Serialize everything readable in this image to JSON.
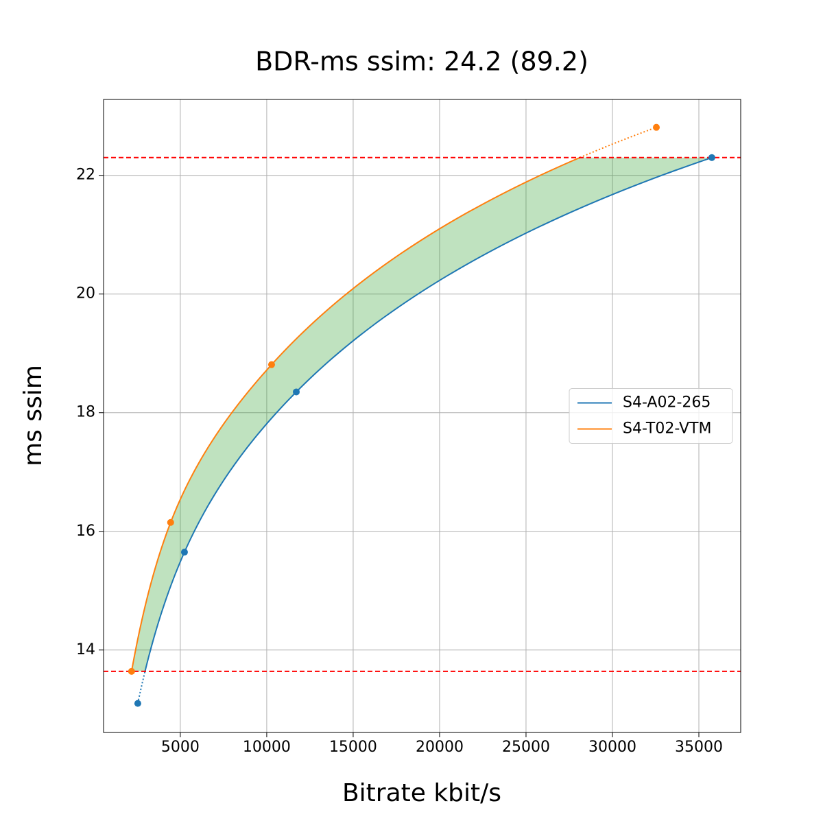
{
  "chart_data": {
    "type": "line",
    "title": "BDR-ms ssim: 24.2 (89.2)",
    "x_label": "Bitrate kbit/s",
    "y_label": "ms ssim",
    "series": [
      {
        "name": "S4-A02-265",
        "color": "#1f77b4",
        "x": [
          2540,
          5240,
          11710,
          35750
        ],
        "values": [
          13.1,
          15.65,
          18.35,
          22.3
        ]
      },
      {
        "name": "S4-T02-VTM",
        "color": "#ff7f0e",
        "x": [
          2180,
          4440,
          10280,
          32540
        ],
        "values": [
          13.64,
          16.15,
          18.81,
          22.81
        ]
      }
    ],
    "fill_color": "#2ca02c",
    "threshold_color": "#ff0000",
    "xlim": [
      560,
      37420
    ],
    "ylim": [
      12.61,
      23.28
    ],
    "xticks": [
      5000,
      10000,
      15000,
      20000,
      25000,
      30000,
      35000
    ],
    "yticks": [
      14,
      16,
      18,
      20,
      22
    ],
    "grid": true,
    "legend": "right"
  }
}
